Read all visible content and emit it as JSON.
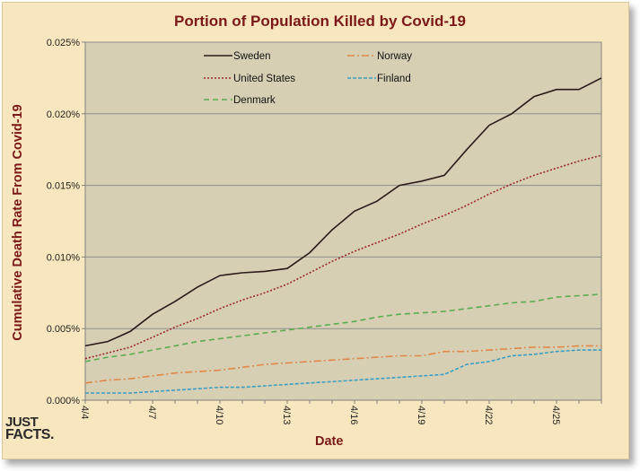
{
  "chart_data": {
    "type": "line",
    "title": "Portion of Population Killed by Covid-19",
    "xlabel": "Date",
    "ylabel": "Cumulative Death Rate From Covid-19",
    "ylim": [
      0,
      0.025
    ],
    "y_ticks": [
      "0.000%",
      "0.005%",
      "0.010%",
      "0.015%",
      "0.020%",
      "0.025%"
    ],
    "x_ticks": [
      "4/4",
      "4/7",
      "4/10",
      "4/13",
      "4/16",
      "4/19",
      "4/22",
      "4/25"
    ],
    "x": [
      "4/4",
      "4/5",
      "4/6",
      "4/7",
      "4/8",
      "4/9",
      "4/10",
      "4/11",
      "4/12",
      "4/13",
      "4/14",
      "4/15",
      "4/16",
      "4/17",
      "4/18",
      "4/19",
      "4/20",
      "4/21",
      "4/22",
      "4/23",
      "4/24",
      "4/25",
      "4/26",
      "4/27"
    ],
    "grid": "horizontal",
    "legend": "top",
    "series": [
      {
        "name": "Sweden",
        "color": "#2b1a1a",
        "dash": "solid",
        "values": [
          0.0038,
          0.0041,
          0.0048,
          0.006,
          0.0069,
          0.0079,
          0.0087,
          0.0089,
          0.009,
          0.0092,
          0.0103,
          0.0119,
          0.0132,
          0.0139,
          0.015,
          0.0153,
          0.0157,
          0.0175,
          0.0192,
          0.02,
          0.0212,
          0.0217,
          0.0217,
          0.0225
        ]
      },
      {
        "name": "Norway",
        "color": "#e0884a",
        "dash": "dashdot",
        "values": [
          0.0012,
          0.0014,
          0.0015,
          0.0017,
          0.0019,
          0.002,
          0.0021,
          0.0023,
          0.0025,
          0.0026,
          0.0027,
          0.0028,
          0.0029,
          0.003,
          0.0031,
          0.0031,
          0.0034,
          0.0034,
          0.0035,
          0.0036,
          0.0037,
          0.0037,
          0.0038,
          0.0038
        ]
      },
      {
        "name": "United States",
        "color": "#9b2a2a",
        "dash": "dotted",
        "values": [
          0.0029,
          0.0033,
          0.0037,
          0.0044,
          0.0051,
          0.0057,
          0.0064,
          0.007,
          0.0075,
          0.0081,
          0.0089,
          0.0097,
          0.0104,
          0.011,
          0.0116,
          0.0123,
          0.0129,
          0.0136,
          0.0144,
          0.0151,
          0.0157,
          0.0162,
          0.0167,
          0.0171
        ]
      },
      {
        "name": "Finland",
        "color": "#3b9ec4",
        "dash": "dashed",
        "values": [
          0.0005,
          0.0005,
          0.0005,
          0.0006,
          0.0007,
          0.0008,
          0.0009,
          0.0009,
          0.001,
          0.0011,
          0.0012,
          0.0013,
          0.0014,
          0.0015,
          0.0016,
          0.0017,
          0.0018,
          0.0025,
          0.0027,
          0.0031,
          0.0032,
          0.0034,
          0.0035,
          0.0035
        ]
      },
      {
        "name": "Denmark",
        "color": "#5aad4e",
        "dash": "longdash",
        "values": [
          0.0027,
          0.003,
          0.0032,
          0.0035,
          0.0038,
          0.0041,
          0.0043,
          0.0045,
          0.0047,
          0.0049,
          0.0051,
          0.0053,
          0.0055,
          0.0058,
          0.006,
          0.0061,
          0.0062,
          0.0064,
          0.0066,
          0.0068,
          0.0069,
          0.0072,
          0.0073,
          0.0074
        ]
      }
    ]
  },
  "branding": {
    "line1": "JUST",
    "line2": "FACTS."
  }
}
